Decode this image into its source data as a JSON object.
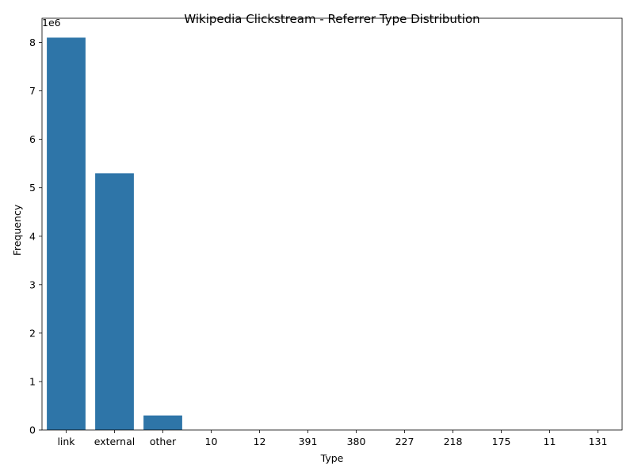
{
  "chart_data": {
    "type": "bar",
    "title": "Wikipedia Clickstream - Referrer Type Distribution",
    "xlabel": "Type",
    "ylabel": "Frequency",
    "y_offset_label": "1e6",
    "categories": [
      "link",
      "external",
      "other",
      "10",
      "12",
      "391",
      "380",
      "227",
      "218",
      "175",
      "11",
      "131"
    ],
    "values": [
      8100000,
      5300000,
      300000,
      0,
      0,
      0,
      0,
      0,
      0,
      0,
      0,
      0
    ],
    "ylim": [
      0,
      8500000
    ],
    "yticks": [
      0,
      1000000,
      2000000,
      3000000,
      4000000,
      5000000,
      6000000,
      7000000,
      8000000
    ],
    "ytick_labels": [
      "0",
      "1",
      "2",
      "3",
      "4",
      "5",
      "6",
      "7",
      "8"
    ],
    "grid": false,
    "bar_color": "#2e75a8"
  }
}
